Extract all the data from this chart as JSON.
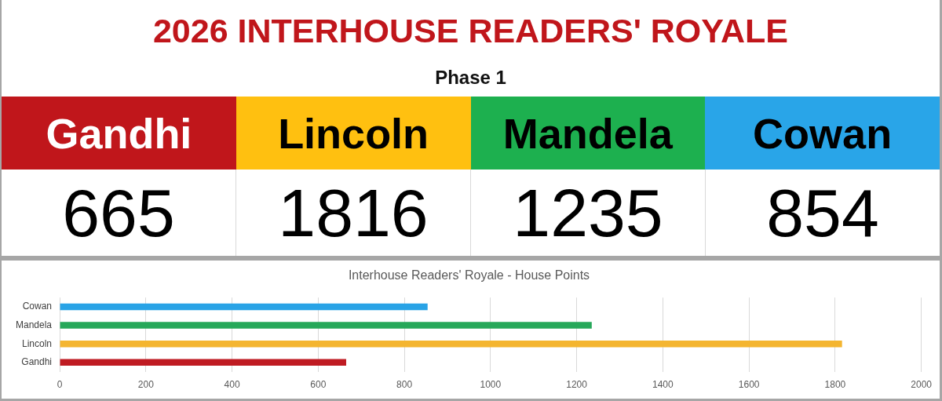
{
  "chart_data": [
    {
      "type": "other",
      "title": "2026 INTERHOUSE READERS' ROYALE",
      "subtitle": "Phase 1",
      "categories": [
        "Gandhi",
        "Lincoln",
        "Mandela",
        "Cowan"
      ],
      "values": [
        665,
        1816,
        1235,
        854
      ],
      "colors": [
        "#c0161b",
        "#ffc010",
        "#1db04f",
        "#29a5e8"
      ],
      "data_labels": true
    },
    {
      "type": "bar",
      "orientation": "horizontal",
      "title": "Interhouse Readers' Royale - House Points",
      "categories": [
        "Cowan",
        "Mandela",
        "Lincoln",
        "Gandhi"
      ],
      "values": [
        854,
        1235,
        1816,
        665
      ],
      "colors": [
        "#29a3e6",
        "#27a85a",
        "#f4b530",
        "#bf1b22"
      ],
      "xlim": [
        0,
        2000
      ],
      "xticks": [
        0,
        200,
        400,
        600,
        800,
        1000,
        1200,
        1400,
        1600,
        1800,
        2000
      ],
      "grid": "x"
    }
  ]
}
